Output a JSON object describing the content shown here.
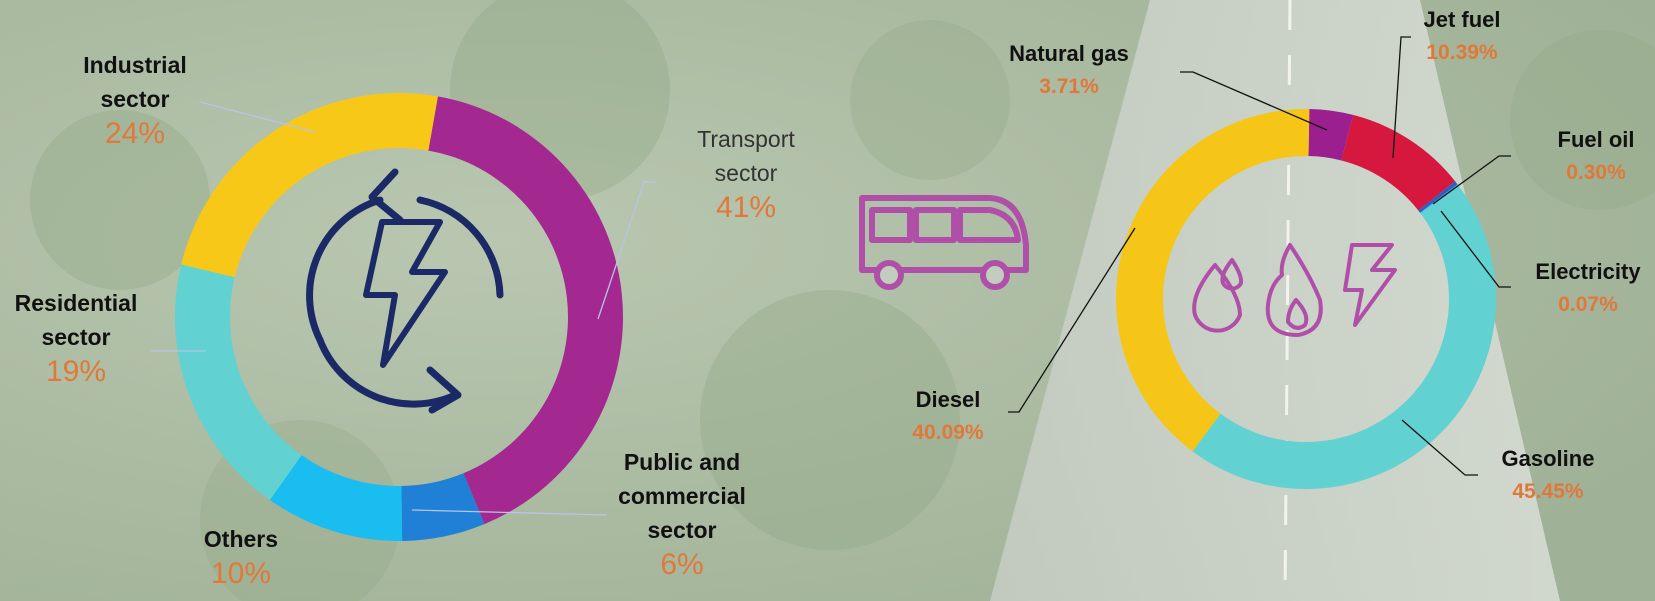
{
  "chart_data": [
    {
      "type": "pie",
      "categories": [
        "Transport sector",
        "Public and commercial sector",
        "Others",
        "Residential sector",
        "Industrial sector"
      ],
      "values": [
        41,
        6,
        10,
        19,
        24
      ],
      "value_labels": [
        "41%",
        "6%",
        "10%",
        "19%",
        "24%"
      ],
      "colors": [
        "#a3288f",
        "#1f80d6",
        "#19bdf0",
        "#62d1d1",
        "#f7c818"
      ]
    },
    {
      "type": "pie",
      "categories": [
        "Natural gas",
        "Jet fuel",
        "Fuel oil",
        "Electricity",
        "Gasoline",
        "Diesel"
      ],
      "values": [
        3.71,
        10.39,
        0.3,
        0.07,
        45.45,
        40.09
      ],
      "value_labels": [
        "3.71%",
        "10.39%",
        "0.30%",
        "0.07%",
        "45.45%",
        "40.09%"
      ],
      "colors": [
        "#9b1f8f",
        "#d6173e",
        "#2a5fc8",
        "#2aa0e8",
        "#62d1d1",
        "#f5c518"
      ]
    }
  ]
}
